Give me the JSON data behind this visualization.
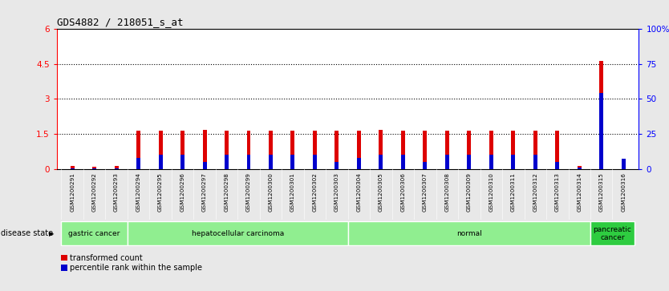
{
  "title": "GDS4882 / 218051_s_at",
  "samples": [
    "GSM1200291",
    "GSM1200292",
    "GSM1200293",
    "GSM1200294",
    "GSM1200295",
    "GSM1200296",
    "GSM1200297",
    "GSM1200298",
    "GSM1200299",
    "GSM1200300",
    "GSM1200301",
    "GSM1200302",
    "GSM1200303",
    "GSM1200304",
    "GSM1200305",
    "GSM1200306",
    "GSM1200307",
    "GSM1200308",
    "GSM1200309",
    "GSM1200310",
    "GSM1200311",
    "GSM1200312",
    "GSM1200313",
    "GSM1200314",
    "GSM1200315",
    "GSM1200316"
  ],
  "transformed_count": [
    0.13,
    0.1,
    0.12,
    1.65,
    1.65,
    1.65,
    1.68,
    1.65,
    1.65,
    1.65,
    1.65,
    1.65,
    1.65,
    1.65,
    1.68,
    1.65,
    1.65,
    1.65,
    1.65,
    1.65,
    1.65,
    1.65,
    1.65,
    0.13,
    4.65,
    0.13
  ],
  "percentile_rank_pct": [
    0.5,
    0.5,
    0.5,
    8.0,
    10.0,
    10.0,
    5.0,
    10.0,
    10.0,
    10.0,
    10.0,
    10.0,
    5.0,
    8.0,
    10.0,
    10.0,
    5.0,
    10.0,
    10.0,
    10.0,
    10.0,
    10.0,
    5.0,
    1.0,
    54.0,
    7.0
  ],
  "disease_groups": [
    {
      "label": "gastric cancer",
      "start": 0,
      "end": 3,
      "color": "#90ee90"
    },
    {
      "label": "hepatocellular carcinoma",
      "start": 3,
      "end": 13,
      "color": "#90ee90"
    },
    {
      "label": "normal",
      "start": 13,
      "end": 24,
      "color": "#90ee90"
    },
    {
      "label": "pancreatic\ncancer",
      "start": 24,
      "end": 26,
      "color": "#2ecc40"
    }
  ],
  "ylim_left": [
    0,
    6
  ],
  "ylim_right": [
    0,
    100
  ],
  "yticks_left": [
    0,
    1.5,
    3.0,
    4.5,
    6.0
  ],
  "yticks_right": [
    0,
    25,
    50,
    75,
    100
  ],
  "ytick_labels_left": [
    "0",
    "1.5",
    "3",
    "4.5",
    "6"
  ],
  "ytick_labels_right": [
    "0",
    "25",
    "50",
    "75",
    "100%"
  ],
  "bar_color_red": "#dd0000",
  "bar_color_blue": "#0000cc",
  "bar_width": 0.18,
  "fig_bg_color": "#e8e8e8",
  "plot_bg_color": "#ffffff",
  "xtick_bg_color": "#c8c8c8",
  "disease_state_label": "disease state",
  "legend_red_label": "transformed count",
  "legend_blue_label": "percentile rank within the sample",
  "dotted_lines": [
    1.5,
    3.0,
    4.5
  ]
}
